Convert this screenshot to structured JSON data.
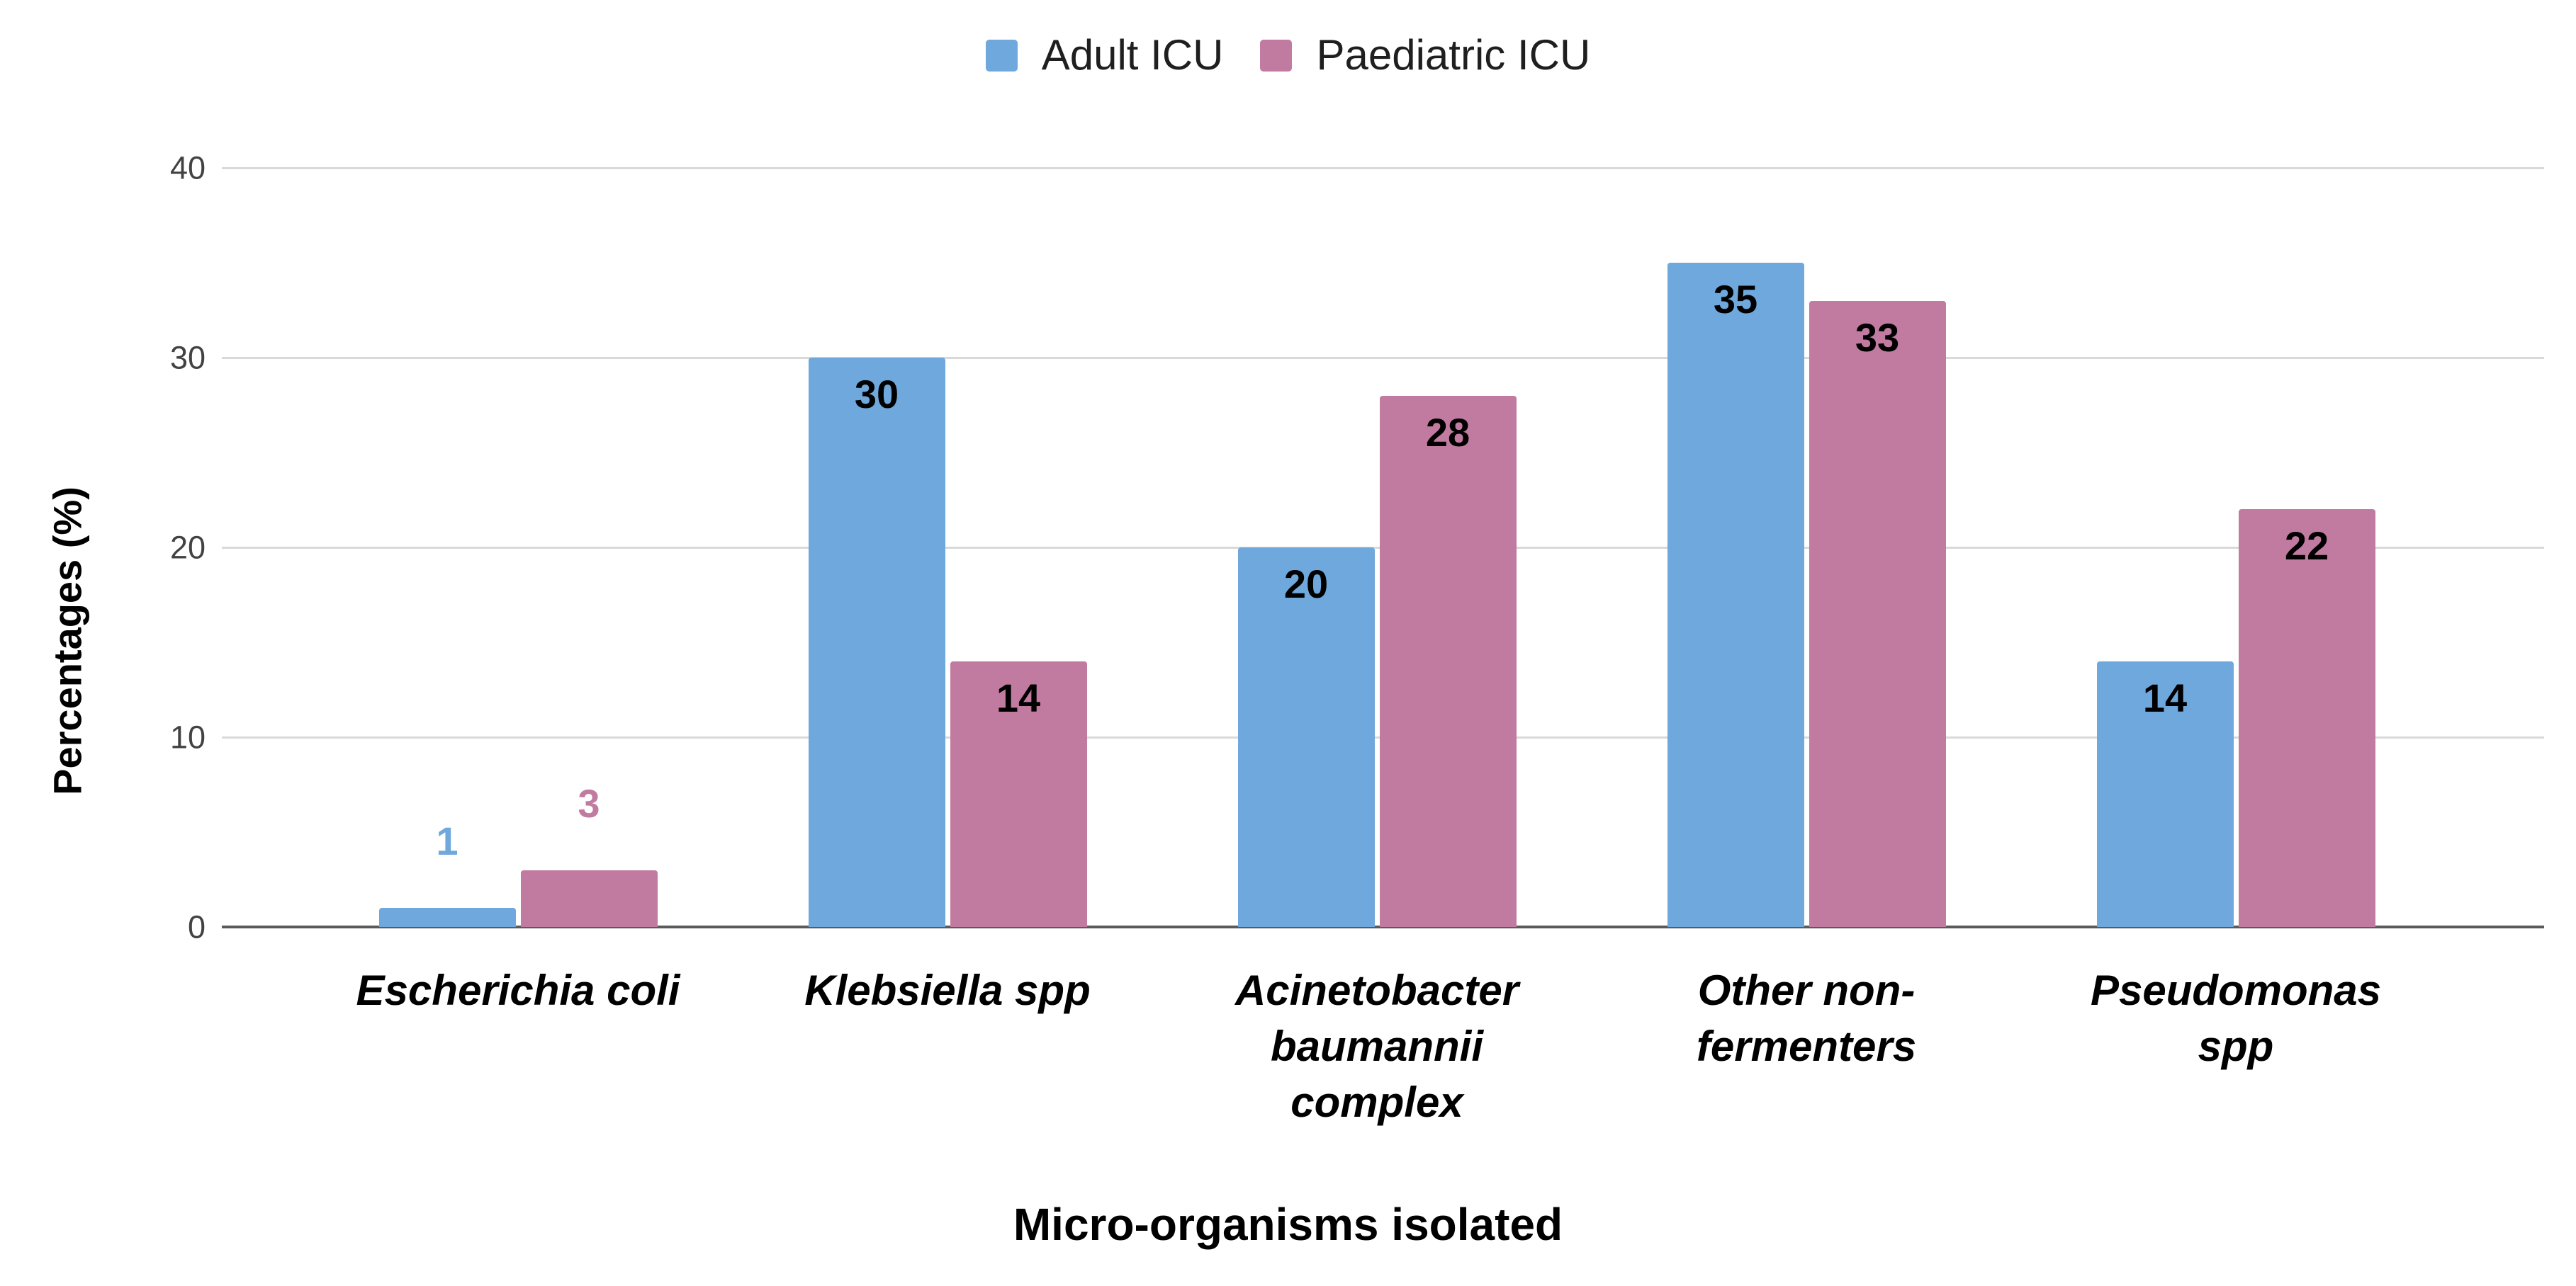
{
  "chart_data": {
    "type": "bar",
    "title": "",
    "categories": [
      "Escherichia coli",
      "Klebsiella spp",
      "Acinetobacter\nbaumannii\ncomplex",
      "Other non-\nfermenters",
      "Pseudomonas\nspp"
    ],
    "series": [
      {
        "name": "Adult ICU",
        "color": "#6FA8DC",
        "values": [
          1,
          30,
          20,
          35,
          14
        ]
      },
      {
        "name": "Paediatric ICU",
        "color": "#C27BA0",
        "values": [
          3,
          14,
          28,
          33,
          22
        ]
      }
    ],
    "xlabel": "Micro-organisms isolated",
    "ylabel": "Percentages (%)",
    "ylim": [
      0,
      40
    ],
    "yticks": [
      0,
      10,
      20,
      30,
      40
    ],
    "grid": true,
    "legend_position": "top",
    "label_inside_threshold": 5,
    "colors": {
      "background": "#FFFFFF",
      "gridline": "#D9D9D9",
      "axis_line": "#5A5A5A",
      "tick_text": "#424242",
      "data_label_inside": "#000000",
      "legend_text": "#1F1F1F"
    }
  }
}
